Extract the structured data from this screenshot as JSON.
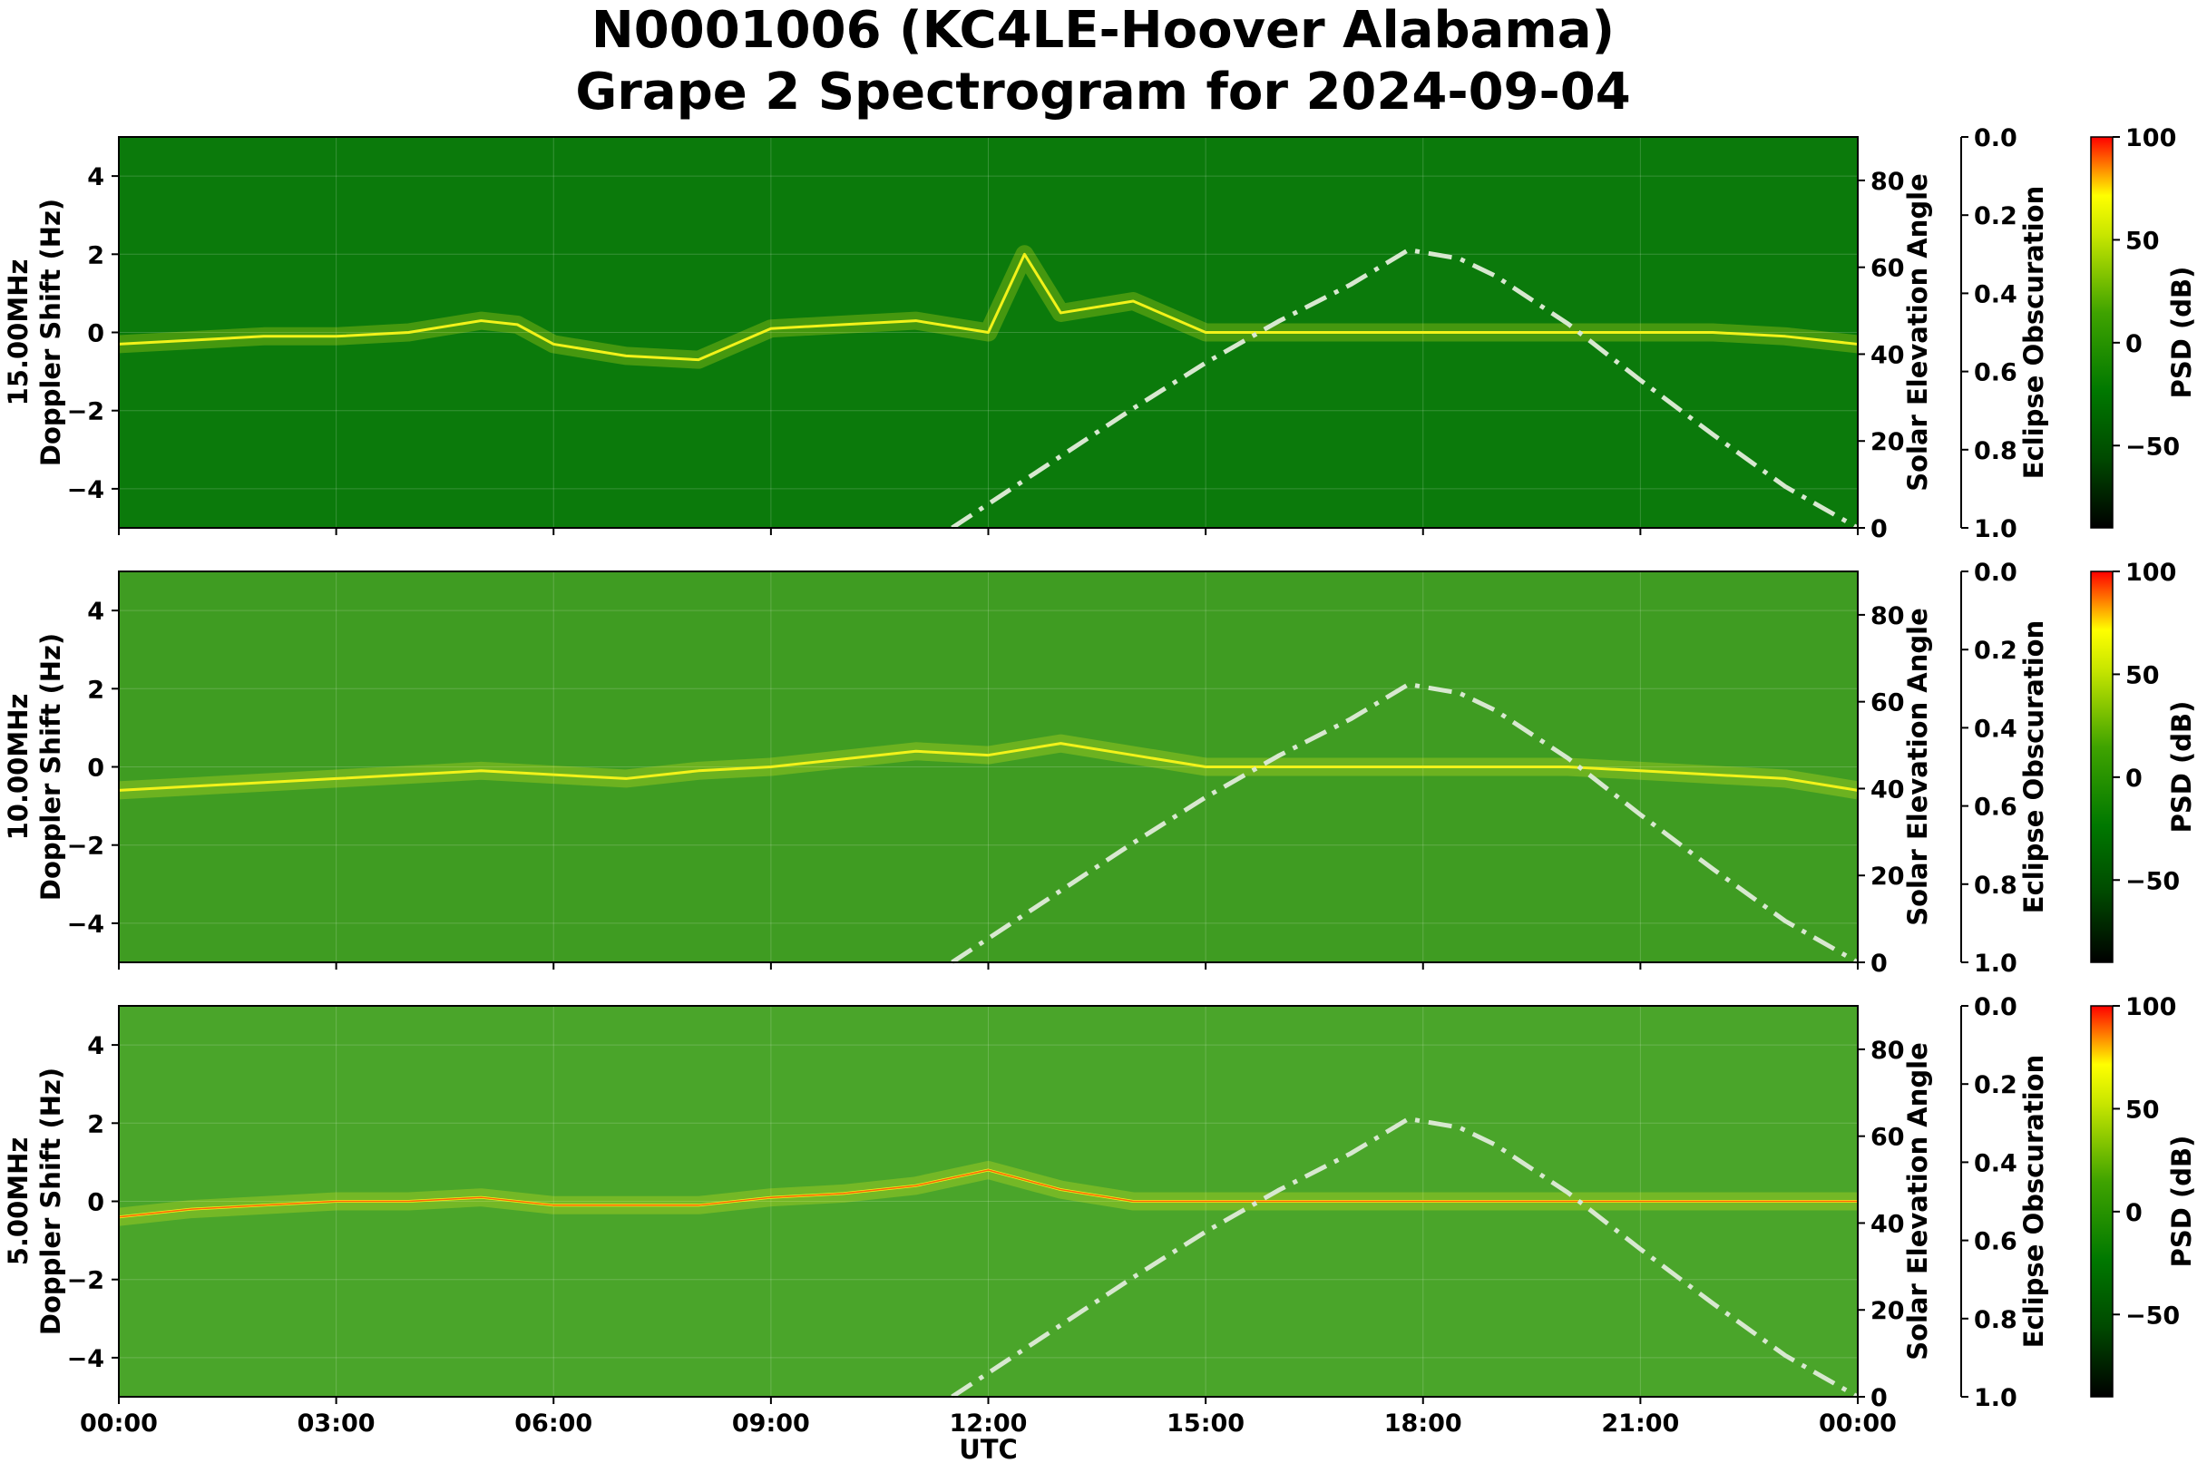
{
  "title_line1": "N0001006 (KC4LE-Hoover Alabama)",
  "title_line2": "Grape 2 Spectrogram for 2024-09-04",
  "colors": {
    "background_15mhz": "#0b7a0b",
    "background_10mhz": "#3f9c22",
    "background_5mhz": "#4aa52a",
    "signal_yellow": "#f2f21a",
    "signal_red": "#ff2a00",
    "elevation_curve": "#d8e8d0",
    "colormap": [
      "#000000",
      "#006400",
      "#008000",
      "#7fc600",
      "#ffff00",
      "#ff0000"
    ]
  },
  "chart_data": [
    {
      "type": "heatmap",
      "panel": "15.00MHz",
      "ylabel_line1": "15.00MHz",
      "ylabel_line2": "Doppler Shift (Hz)",
      "xlabel": "",
      "ylim": [
        -5,
        5
      ],
      "yticks": [
        4,
        2,
        0,
        -2,
        -4
      ],
      "xticks": [
        "00:00",
        "03:00",
        "06:00",
        "09:00",
        "12:00",
        "15:00",
        "18:00",
        "21:00",
        "00:00"
      ],
      "show_xtick_labels": false,
      "grid": true,
      "doppler_trace": {
        "x_utc_hours": [
          0,
          1,
          2,
          3,
          4,
          5,
          5.5,
          6,
          7,
          8,
          9,
          10,
          11,
          12,
          12.5,
          13,
          14,
          15,
          16,
          17,
          18,
          19,
          20,
          21,
          22,
          23,
          24
        ],
        "y_hz": [
          -0.3,
          -0.2,
          -0.1,
          -0.1,
          0.0,
          0.3,
          0.2,
          -0.3,
          -0.6,
          -0.7,
          0.1,
          0.2,
          0.3,
          0.0,
          2.0,
          0.5,
          0.8,
          0.0,
          0.0,
          0.0,
          0.0,
          0.0,
          0.0,
          0.0,
          0.0,
          -0.1,
          -0.3
        ]
      },
      "right_axis": {
        "label": "Solar Elevation Angle",
        "ylim": [
          0,
          90
        ],
        "yticks": [
          80,
          60,
          40,
          20,
          0
        ]
      },
      "solar_elevation": {
        "x_utc_hours": [
          11.5,
          12,
          13,
          14,
          15,
          16,
          17,
          17.8,
          18.5,
          19,
          20,
          21,
          22,
          23,
          24
        ],
        "y_deg": [
          0,
          5.5,
          16.5,
          27.5,
          38,
          47.5,
          56,
          64,
          62,
          58,
          47,
          34,
          21.5,
          9.5,
          0
        ]
      },
      "eclipse_axis": {
        "label": "Eclipse Obscuration",
        "ylim": [
          0.0,
          1.0
        ],
        "yticks": [
          "0.0",
          "0.2",
          "0.4",
          "0.6",
          "0.8",
          "1.0"
        ]
      },
      "colorbar": {
        "label": "PSD (dB)",
        "range": [
          -90,
          100
        ],
        "ticks": [
          "100",
          "50",
          "0",
          "−50"
        ]
      }
    },
    {
      "type": "heatmap",
      "panel": "10.00MHz",
      "ylabel_line1": "10.00MHz",
      "ylabel_line2": "Doppler Shift (Hz)",
      "xlabel": "",
      "ylim": [
        -5,
        5
      ],
      "yticks": [
        4,
        2,
        0,
        -2,
        -4
      ],
      "xticks": [
        "00:00",
        "03:00",
        "06:00",
        "09:00",
        "12:00",
        "15:00",
        "18:00",
        "21:00",
        "00:00"
      ],
      "show_xtick_labels": false,
      "grid": true,
      "doppler_trace": {
        "x_utc_hours": [
          0,
          1,
          2,
          3,
          4,
          5,
          6,
          7,
          8,
          9,
          10,
          11,
          12,
          13,
          14,
          15,
          16,
          17,
          18,
          19,
          20,
          21,
          22,
          23,
          24
        ],
        "y_hz": [
          -0.6,
          -0.5,
          -0.4,
          -0.3,
          -0.2,
          -0.1,
          -0.2,
          -0.3,
          -0.1,
          0.0,
          0.2,
          0.4,
          0.3,
          0.6,
          0.3,
          0.0,
          0.0,
          0.0,
          0.0,
          0.0,
          0.0,
          -0.1,
          -0.2,
          -0.3,
          -0.6
        ]
      },
      "right_axis": {
        "label": "Solar Elevation Angle",
        "ylim": [
          0,
          90
        ],
        "yticks": [
          80,
          60,
          40,
          20,
          0
        ]
      },
      "solar_elevation": {
        "x_utc_hours": [
          11.5,
          12,
          13,
          14,
          15,
          16,
          17,
          17.8,
          18.5,
          19,
          20,
          21,
          22,
          23,
          24
        ],
        "y_deg": [
          0,
          5.5,
          16.5,
          27.5,
          38,
          47.5,
          56,
          64,
          62,
          58,
          47,
          34,
          21.5,
          9.5,
          0
        ]
      },
      "eclipse_axis": {
        "label": "Eclipse Obscuration",
        "ylim": [
          0.0,
          1.0
        ],
        "yticks": [
          "0.0",
          "0.2",
          "0.4",
          "0.6",
          "0.8",
          "1.0"
        ]
      },
      "colorbar": {
        "label": "PSD (dB)",
        "range": [
          -90,
          100
        ],
        "ticks": [
          "100",
          "50",
          "0",
          "−50"
        ]
      }
    },
    {
      "type": "heatmap",
      "panel": "5.00MHz",
      "ylabel_line1": "5.00MHz",
      "ylabel_line2": "Doppler Shift (Hz)",
      "xlabel": "UTC",
      "ylim": [
        -5,
        5
      ],
      "yticks": [
        4,
        2,
        0,
        -2,
        -4
      ],
      "xticks": [
        "00:00",
        "03:00",
        "06:00",
        "09:00",
        "12:00",
        "15:00",
        "18:00",
        "21:00",
        "00:00"
      ],
      "show_xtick_labels": true,
      "grid": true,
      "doppler_trace": {
        "x_utc_hours": [
          0,
          1,
          2,
          3,
          4,
          5,
          6,
          7,
          8,
          9,
          10,
          11,
          12,
          13,
          14,
          24
        ],
        "y_hz": [
          -0.4,
          -0.2,
          -0.1,
          0.0,
          0.0,
          0.1,
          -0.1,
          -0.1,
          -0.1,
          0.1,
          0.2,
          0.4,
          0.8,
          0.3,
          0.0,
          0.0
        ]
      },
      "right_axis": {
        "label": "Solar Elevation Angle",
        "ylim": [
          0,
          90
        ],
        "yticks": [
          80,
          60,
          40,
          20,
          0
        ]
      },
      "solar_elevation": {
        "x_utc_hours": [
          11.5,
          12,
          13,
          14,
          15,
          16,
          17,
          17.8,
          18.5,
          19,
          20,
          21,
          22,
          23,
          24
        ],
        "y_deg": [
          0,
          5.5,
          16.5,
          27.5,
          38,
          47.5,
          56,
          64,
          62,
          58,
          47,
          34,
          21.5,
          9.5,
          0
        ]
      },
      "eclipse_axis": {
        "label": "Eclipse Obscuration",
        "ylim": [
          0.0,
          1.0
        ],
        "yticks": [
          "0.0",
          "0.2",
          "0.4",
          "0.6",
          "0.8",
          "1.0"
        ]
      },
      "colorbar": {
        "label": "PSD (dB)",
        "range": [
          -90,
          100
        ],
        "ticks": [
          "100",
          "50",
          "0",
          "−50"
        ]
      }
    }
  ]
}
